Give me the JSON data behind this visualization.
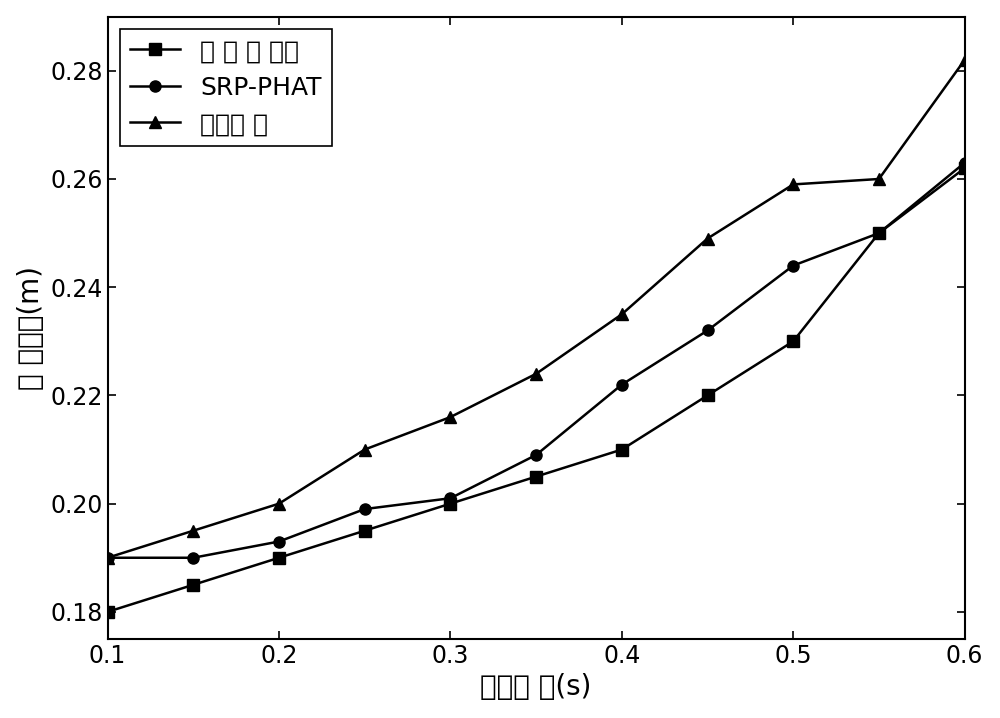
{
  "x": [
    0.1,
    0.15,
    0.2,
    0.25,
    0.3,
    0.35,
    0.4,
    0.45,
    0.5,
    0.55,
    0.6
  ],
  "series1_y": [
    0.18,
    0.185,
    0.19,
    0.195,
    0.2,
    0.205,
    0.21,
    0.22,
    0.23,
    0.25,
    0.262
  ],
  "series2_y": [
    0.19,
    0.19,
    0.193,
    0.199,
    0.201,
    0.209,
    0.222,
    0.232,
    0.244,
    0.25,
    0.263
  ],
  "series3_y": [
    0.19,
    0.195,
    0.2,
    0.21,
    0.216,
    0.224,
    0.235,
    0.249,
    0.259,
    0.26,
    0.282
  ],
  "series1_label": "本 发 明 提出",
  "series2_label": "SRP-PHAT",
  "series3_label": "几何定 位",
  "xlabel": "混响时 间(s)",
  "ylabel": "定 位误差(m)",
  "xlim": [
    0.1,
    0.6
  ],
  "ylim": [
    0.175,
    0.29
  ],
  "xticks": [
    0.1,
    0.2,
    0.3,
    0.4,
    0.5,
    0.6
  ],
  "yticks": [
    0.18,
    0.2,
    0.22,
    0.24,
    0.26,
    0.28
  ],
  "line_color": "#000000",
  "background_color": "#ffffff",
  "marker1": "s",
  "marker2": "o",
  "marker3": "^",
  "linewidth": 1.8,
  "markersize": 8,
  "legend_fontsize": 18,
  "axis_fontsize": 20,
  "tick_fontsize": 17
}
